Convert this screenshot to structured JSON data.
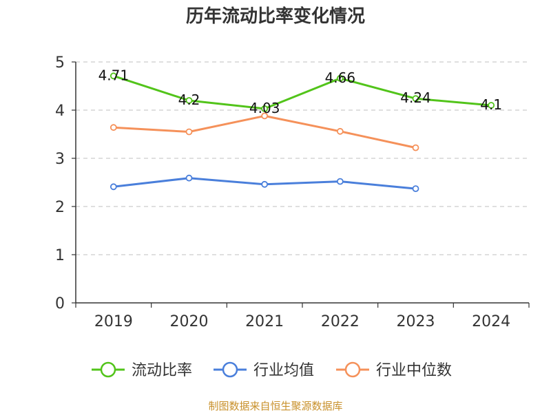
{
  "chart_data": {
    "type": "line",
    "title": "历年流动比率变化情况",
    "categories": [
      "2019",
      "2020",
      "2021",
      "2022",
      "2023",
      "2024"
    ],
    "ylim": [
      0,
      5
    ],
    "yticks": [
      "0",
      "1",
      "2",
      "3",
      "4",
      "5"
    ],
    "grid": true,
    "legend_position": "bottom",
    "series": [
      {
        "name": "流动比率",
        "color": "#52c41a",
        "values": [
          4.71,
          4.2,
          4.03,
          4.66,
          4.24,
          4.1
        ],
        "labels": [
          "4.71",
          "4.2",
          "4.03",
          "4.66",
          "4.24",
          "4.1"
        ],
        "show_labels": true
      },
      {
        "name": "行业均值",
        "color": "#4a7fdb",
        "values": [
          2.41,
          2.59,
          2.46,
          2.52,
          2.37,
          null
        ],
        "show_labels": false
      },
      {
        "name": "行业中位数",
        "color": "#f5915a",
        "values": [
          3.64,
          3.55,
          3.88,
          3.56,
          3.22,
          null
        ],
        "show_labels": false
      }
    ],
    "source": "制图数据来自恒生聚源数据库"
  }
}
